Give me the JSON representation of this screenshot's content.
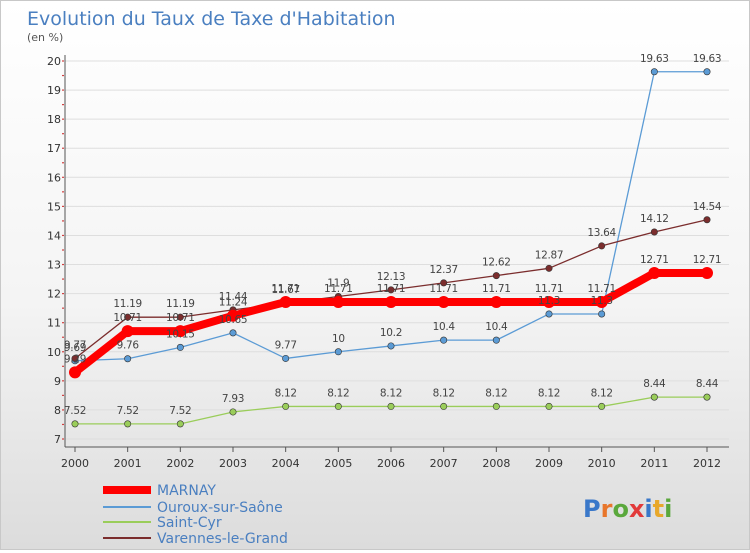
{
  "chart_data": {
    "type": "line",
    "title": "Evolution du Taux de Taxe d'Habitation",
    "subtitle": "(en %)",
    "x": [
      "2000",
      "2001",
      "2002",
      "2003",
      "2004",
      "2005",
      "2006",
      "2007",
      "2008",
      "2009",
      "2010",
      "2011",
      "2012"
    ],
    "ylim": [
      7,
      20
    ],
    "yticks": [
      "7",
      "8",
      "9",
      "10",
      "11",
      "12",
      "13",
      "14",
      "15",
      "16",
      "17",
      "18",
      "19",
      "20"
    ],
    "legend_position": "bottom-left",
    "series": [
      {
        "name": "MARNAY",
        "color": "#ff0000",
        "values": [
          9.29,
          10.71,
          10.71,
          11.24,
          11.71,
          11.71,
          11.71,
          11.71,
          11.71,
          11.71,
          11.71,
          12.71,
          12.71
        ],
        "labels": [
          "9.29",
          "10.71",
          "10.71",
          "11.24",
          "11.71",
          "11.71",
          "11.71",
          "11.71",
          "11.71",
          "11.71",
          "11.71",
          "12.71",
          "12.71"
        ]
      },
      {
        "name": "Ouroux-sur-Saône",
        "color": "#5b9bd5",
        "values": [
          9.69,
          9.76,
          10.15,
          10.65,
          9.77,
          10,
          10.2,
          10.4,
          10.4,
          11.3,
          11.3,
          19.63,
          19.63
        ],
        "labels": [
          "9.69",
          "9.76",
          "10.15",
          "10.65",
          "9.77",
          "10",
          "10.2",
          "10.4",
          "10.4",
          "11.3",
          "11.3",
          "19.63",
          "19.63"
        ]
      },
      {
        "name": "Saint-Cyr",
        "color": "#9acd5a",
        "values": [
          7.52,
          7.52,
          7.52,
          7.93,
          8.12,
          8.12,
          8.12,
          8.12,
          8.12,
          8.12,
          8.12,
          8.44,
          8.44
        ],
        "labels": [
          "7.52",
          "7.52",
          "7.52",
          "7.93",
          "8.12",
          "8.12",
          "8.12",
          "8.12",
          "8.12",
          "8.12",
          "8.12",
          "8.44",
          "8.44"
        ]
      },
      {
        "name": "Varennes-le-Grand",
        "color": "#7b2d2d",
        "values": [
          9.77,
          11.19,
          11.19,
          11.44,
          11.67,
          11.9,
          12.13,
          12.37,
          12.62,
          12.87,
          13.64,
          14.12,
          14.54
        ],
        "labels": [
          "9.77",
          "11.19",
          "11.19",
          "11.44",
          "11.67",
          "11.9",
          "12.13",
          "12.37",
          "12.62",
          "12.87",
          "13.64",
          "14.12",
          "14.54"
        ]
      }
    ]
  },
  "logo": {
    "text": "Proxiti"
  }
}
